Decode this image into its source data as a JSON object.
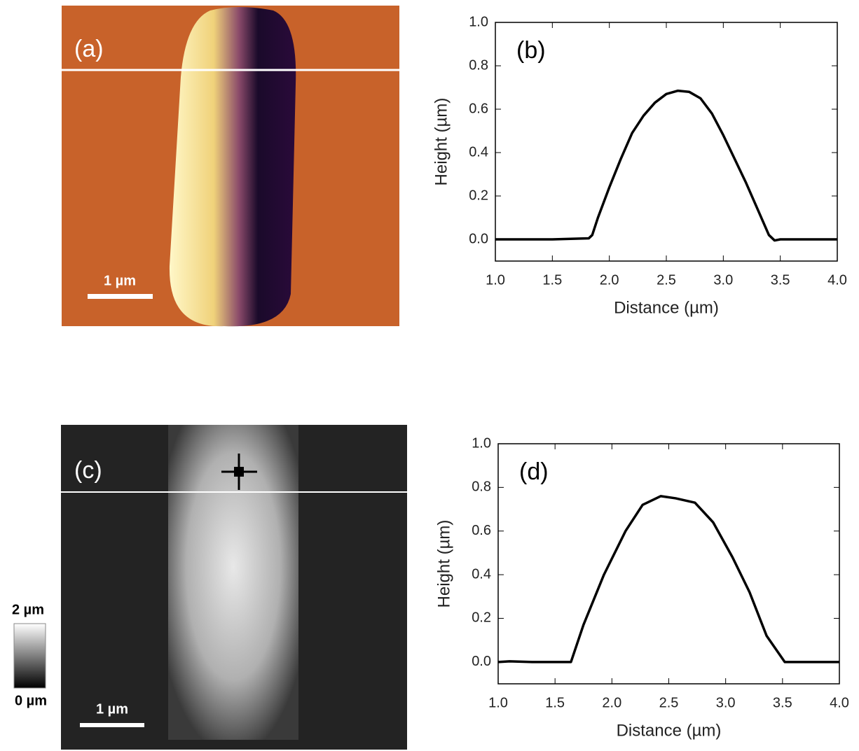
{
  "images": [
    {
      "label": "(a)",
      "scale_bar": "1 µm"
    },
    {
      "label": "(c)",
      "scale_bar": "1 µm",
      "colorbar_max": "2 µm",
      "colorbar_min": "0 µm"
    }
  ],
  "chart_data": [
    {
      "type": "line",
      "annotation": "(b)",
      "x_label": "Distance (µm)",
      "y_label": "Height (µm)",
      "color": "#000000",
      "x": [
        1.0,
        1.5,
        1.82,
        1.85,
        1.9,
        2.0,
        2.1,
        2.2,
        2.3,
        2.4,
        2.5,
        2.6,
        2.7,
        2.8,
        2.9,
        3.0,
        3.1,
        3.2,
        3.3,
        3.4,
        3.45,
        3.5,
        4.0
      ],
      "values": [
        0,
        0,
        0.005,
        0.02,
        0.1,
        0.24,
        0.37,
        0.49,
        0.57,
        0.63,
        0.67,
        0.685,
        0.68,
        0.65,
        0.58,
        0.48,
        0.37,
        0.26,
        0.14,
        0.02,
        -0.005,
        0,
        0
      ],
      "xlim": [
        1.0,
        4.0
      ],
      "ylim": [
        -0.1,
        1.0
      ],
      "xticks": [
        {
          "value": 1,
          "label": "1.0"
        },
        1.5,
        {
          "value": 2,
          "label": "2.0"
        },
        2.5,
        {
          "value": 3,
          "label": "3.0"
        },
        3.5,
        {
          "value": 4,
          "label": "4.0"
        }
      ],
      "yticks": [
        {
          "value": 0,
          "label": "0.0"
        },
        0.2,
        0.4,
        0.6,
        0.8,
        {
          "value": 1,
          "label": "1.0"
        }
      ]
    },
    {
      "type": "line",
      "annotation": "(d)",
      "x_label": "Distance (µm)",
      "y_label": "Height (µm)",
      "color": "#000000",
      "x": [
        1.0,
        1.1,
        1.3,
        1.64,
        1.75,
        1.93,
        2.12,
        2.27,
        2.43,
        2.56,
        2.73,
        2.89,
        3.06,
        3.21,
        3.36,
        3.52,
        4.0
      ],
      "values": [
        0,
        0.003,
        0,
        0,
        0.17,
        0.4,
        0.6,
        0.72,
        0.76,
        0.75,
        0.73,
        0.64,
        0.48,
        0.32,
        0.12,
        0,
        0
      ],
      "xlim": [
        1.0,
        4.0
      ],
      "ylim": [
        -0.1,
        1.0
      ],
      "xticks": [
        {
          "value": 1,
          "label": "1.0"
        },
        1.5,
        {
          "value": 2,
          "label": "2.0"
        },
        2.5,
        {
          "value": 3,
          "label": "3.0"
        },
        3.5,
        {
          "value": 4,
          "label": "4.0"
        }
      ],
      "yticks": [
        {
          "value": 0,
          "label": "0.0"
        },
        0.2,
        0.4,
        0.6,
        0.8,
        {
          "value": 1,
          "label": "1.0"
        }
      ]
    }
  ]
}
